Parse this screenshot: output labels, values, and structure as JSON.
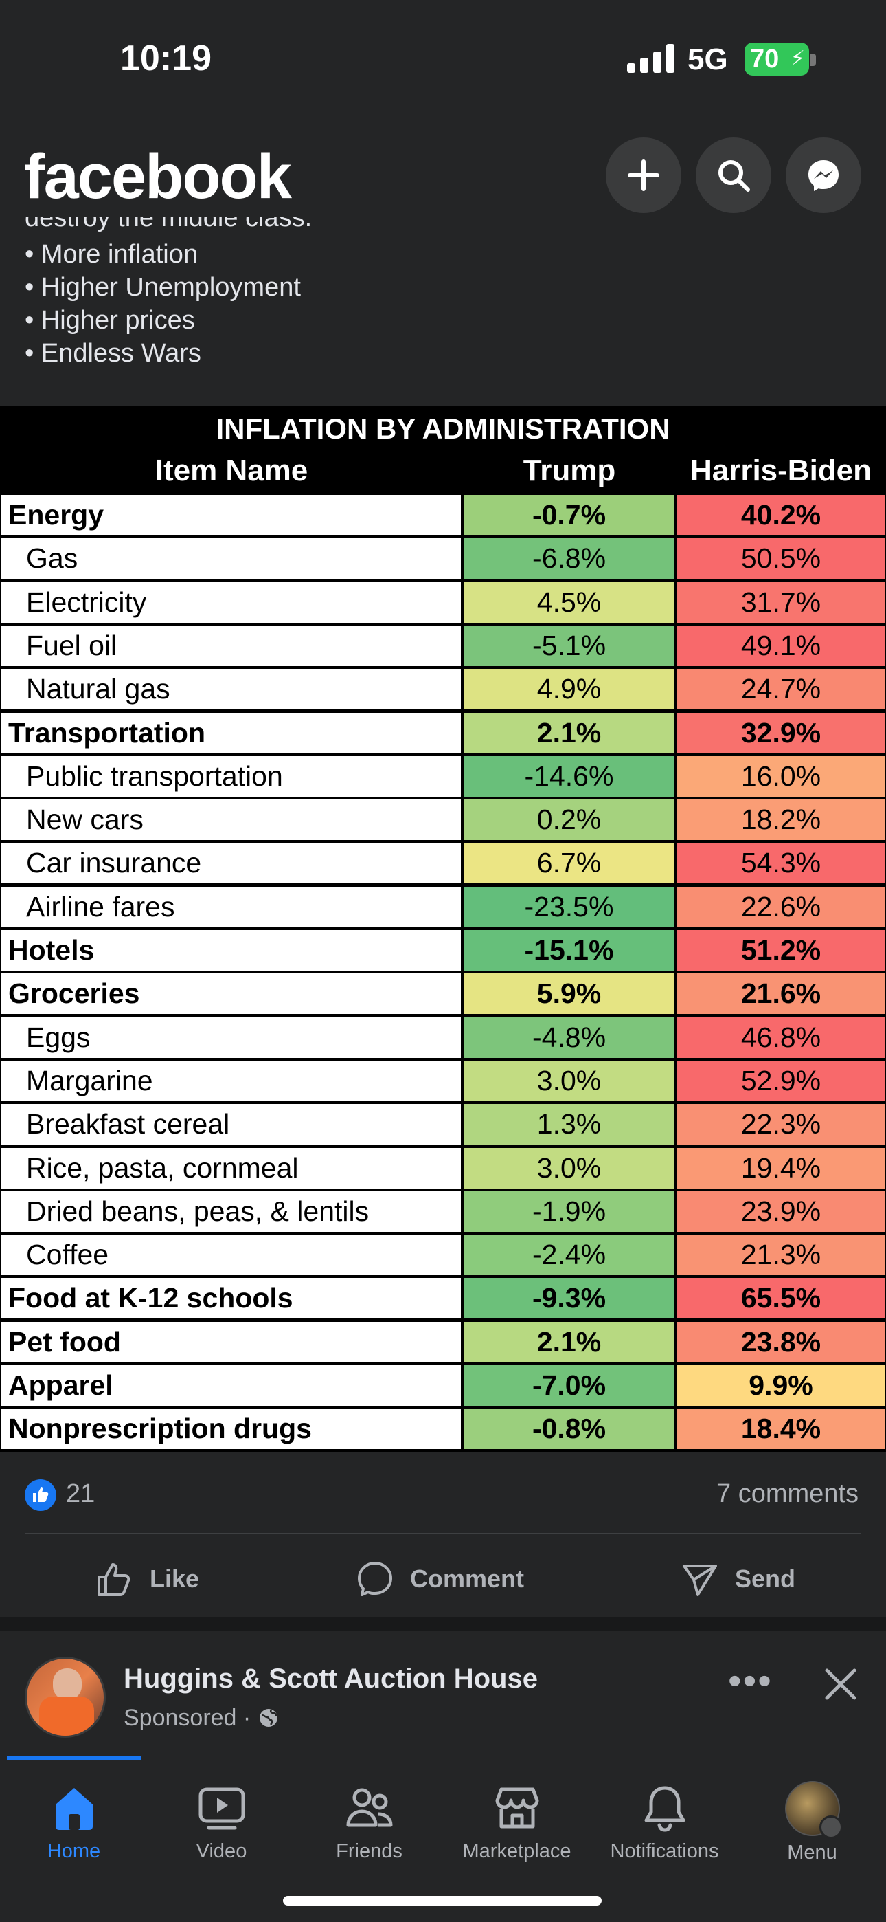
{
  "status": {
    "time": "10:19",
    "network": "5G",
    "battery": "70"
  },
  "header": {
    "logo": "facebook",
    "icons": [
      "plus-icon",
      "search-icon",
      "messenger-icon"
    ]
  },
  "post": {
    "text_cut": "destroy the middle class.",
    "bullets": [
      "• More inflation",
      "• Higher Unemployment",
      "• Higher prices",
      "• Endless Wars"
    ]
  },
  "table": {
    "title": "INFLATION BY ADMINISTRATION",
    "headers": [
      "Item Name",
      "Trump",
      "Harris-Biden"
    ],
    "rows": [
      {
        "name": "Energy",
        "trump": "-0.7%",
        "harris": "40.2%",
        "bold": true,
        "tc": "#9ccf7a",
        "hc": "#f8696b"
      },
      {
        "name": "Gas",
        "trump": "-6.8%",
        "harris": "50.5%",
        "bold": false,
        "tc": "#74c27a",
        "hc": "#f8696b"
      },
      {
        "name": "Electricity",
        "trump": "4.5%",
        "harris": "31.7%",
        "bold": false,
        "tc": "#d7e285",
        "hc": "#f8756e"
      },
      {
        "name": "Fuel oil",
        "trump": "-5.1%",
        "harris": "49.1%",
        "bold": false,
        "tc": "#7bc47b",
        "hc": "#f8696b"
      },
      {
        "name": "Natural gas",
        "trump": "4.9%",
        "harris": "24.7%",
        "bold": false,
        "tc": "#dde383",
        "hc": "#f98871"
      },
      {
        "name": "Transportation",
        "trump": "2.1%",
        "harris": "32.9%",
        "bold": true,
        "tc": "#b7d981",
        "hc": "#f8716d"
      },
      {
        "name": "Public transportation",
        "trump": "-14.6%",
        "harris": "16.0%",
        "bold": false,
        "tc": "#69bf7a",
        "hc": "#fba877"
      },
      {
        "name": "New cars",
        "trump": "0.2%",
        "harris": "18.2%",
        "bold": false,
        "tc": "#a5d27e",
        "hc": "#fa9d75"
      },
      {
        "name": "Car insurance",
        "trump": "6.7%",
        "harris": "54.3%",
        "bold": false,
        "tc": "#ebe584",
        "hc": "#f8696b"
      },
      {
        "name": "Airline fares",
        "trump": "-23.5%",
        "harris": "22.6%",
        "bold": false,
        "tc": "#63be7b",
        "hc": "#f98e72"
      },
      {
        "name": "Hotels",
        "trump": "-15.1%",
        "harris": "51.2%",
        "bold": true,
        "tc": "#66bf7a",
        "hc": "#f8696b"
      },
      {
        "name": "Groceries",
        "trump": "5.9%",
        "harris": "21.6%",
        "bold": true,
        "tc": "#e5e483",
        "hc": "#f99373"
      },
      {
        "name": "Eggs",
        "trump": "-4.8%",
        "harris": "46.8%",
        "bold": false,
        "tc": "#7dc57b",
        "hc": "#f8696b"
      },
      {
        "name": "Margarine",
        "trump": "3.0%",
        "harris": "52.9%",
        "bold": false,
        "tc": "#c2dc82",
        "hc": "#f8696b"
      },
      {
        "name": "Breakfast cereal",
        "trump": "1.3%",
        "harris": "22.3%",
        "bold": false,
        "tc": "#b0d680",
        "hc": "#f99073"
      },
      {
        "name": "Rice, pasta, cornmeal",
        "trump": "3.0%",
        "harris": "19.4%",
        "bold": false,
        "tc": "#c2dc82",
        "hc": "#fa9974"
      },
      {
        "name": "Dried beans, peas, & lentils",
        "trump": "-1.9%",
        "harris": "23.9%",
        "bold": false,
        "tc": "#90cc7c",
        "hc": "#f98a72"
      },
      {
        "name": "Coffee",
        "trump": "-2.4%",
        "harris": "21.3%",
        "bold": false,
        "tc": "#8acb7c",
        "hc": "#f99373"
      },
      {
        "name": "Food at K-12 schools",
        "trump": "-9.3%",
        "harris": "65.5%",
        "bold": true,
        "tc": "#6cc07a",
        "hc": "#f8696b"
      },
      {
        "name": "Pet food",
        "trump": "2.1%",
        "harris": "23.8%",
        "bold": true,
        "tc": "#b7d981",
        "hc": "#f98a72"
      },
      {
        "name": "Apparel",
        "trump": "-7.0%",
        "harris": "9.9%",
        "bold": true,
        "tc": "#72c27a",
        "hc": "#fed980"
      },
      {
        "name": "Nonprescription drugs",
        "trump": "-0.8%",
        "harris": "18.4%",
        "bold": true,
        "tc": "#9bcf7d",
        "hc": "#fa9d75"
      }
    ]
  },
  "reactions": {
    "likes": "21",
    "comments": "7 comments"
  },
  "actions": {
    "like": "Like",
    "comment": "Comment",
    "send": "Send"
  },
  "sponsored": {
    "name": "Huggins & Scott Auction House",
    "label": "Sponsored ·"
  },
  "tabs": [
    {
      "label": "Home",
      "active": true
    },
    {
      "label": "Video",
      "active": false
    },
    {
      "label": "Friends",
      "active": false
    },
    {
      "label": "Marketplace",
      "active": false
    },
    {
      "label": "Notifications",
      "active": false
    },
    {
      "label": "Menu",
      "active": false
    }
  ],
  "colors": {
    "accent": "#1877f2",
    "background": "#242526"
  }
}
